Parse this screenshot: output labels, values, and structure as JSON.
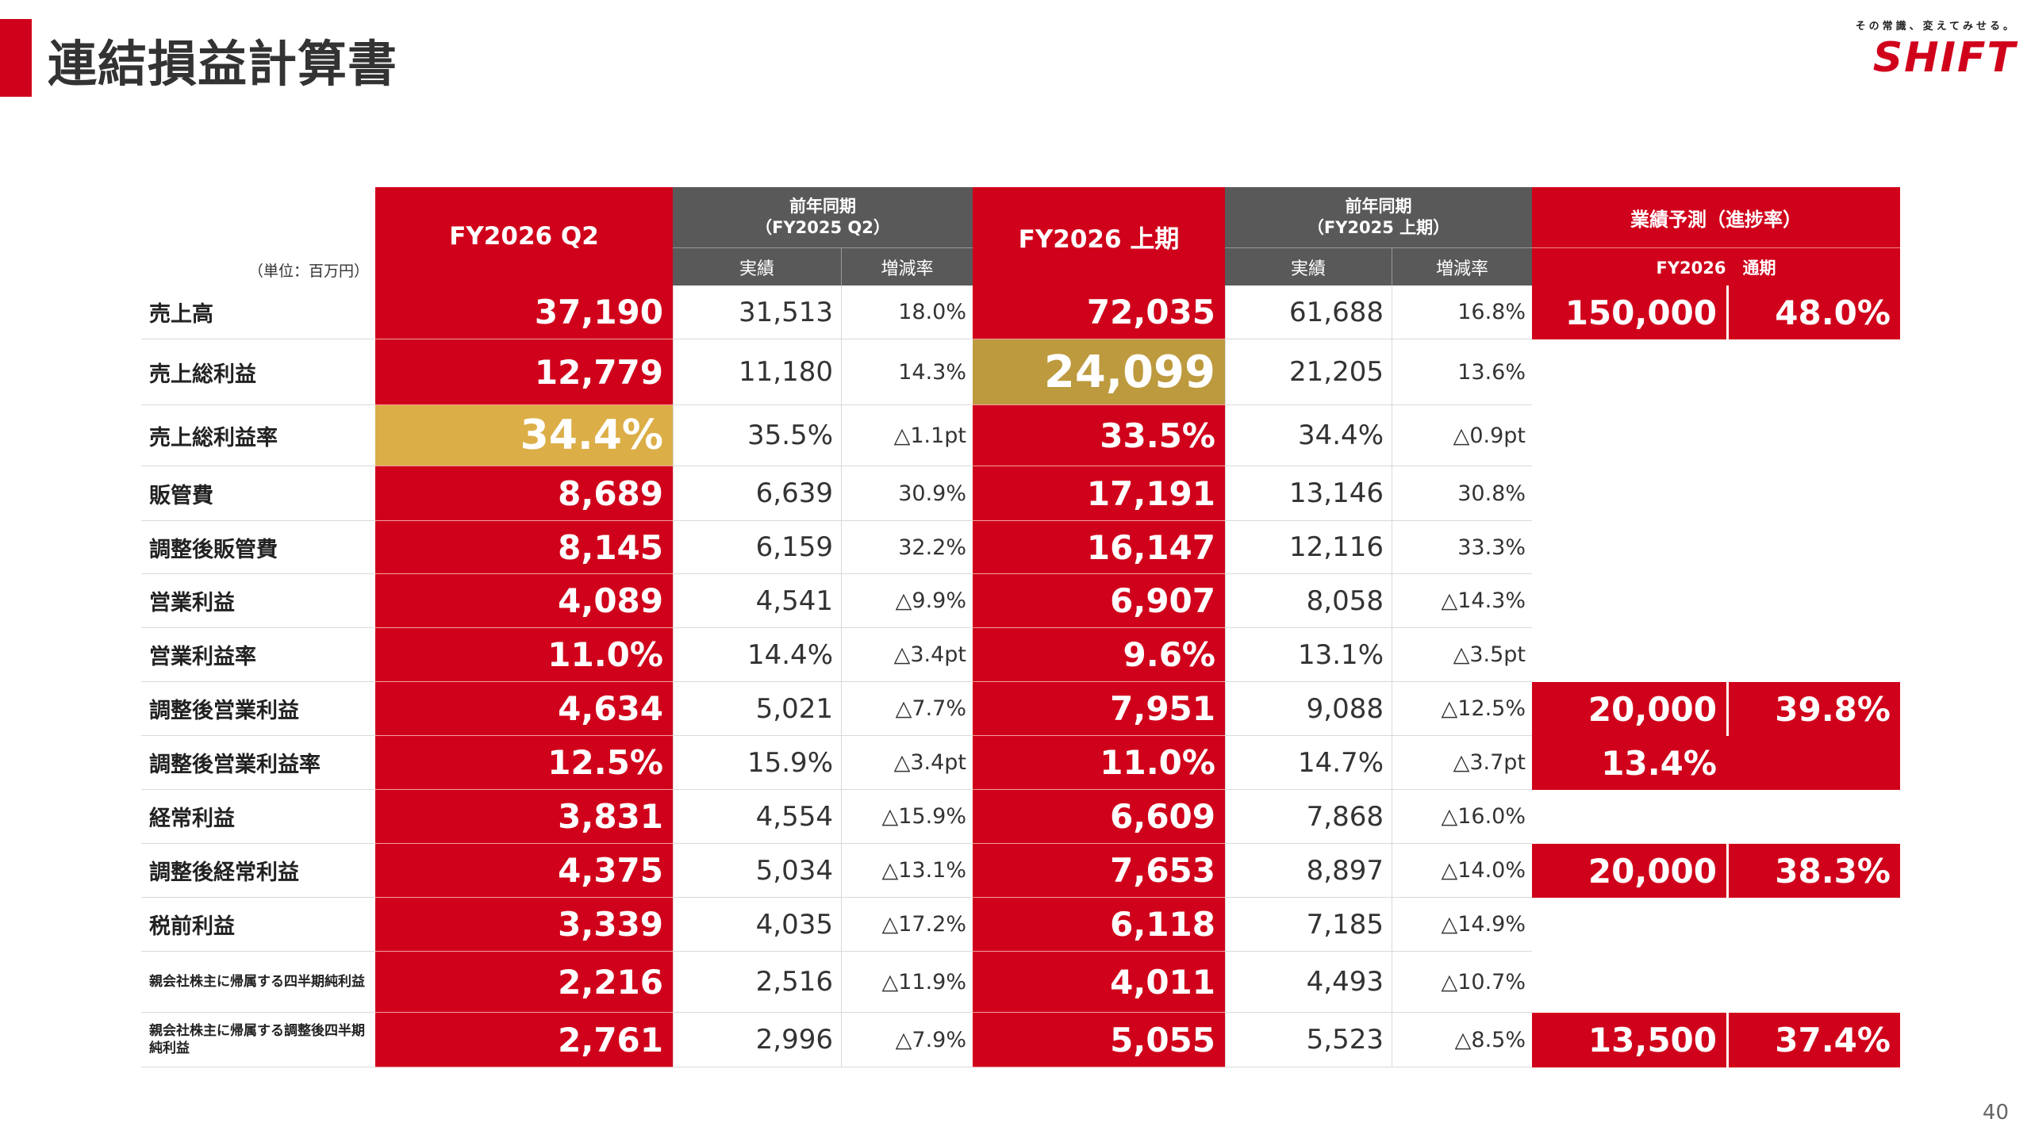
{
  "page": {
    "title": "連結損益計算書",
    "page_number": "40"
  },
  "logo": {
    "tagline": "その常識、変えてみせる。",
    "wordmark": "SHIFT"
  },
  "table": {
    "unit_label": "（単位：百万円）",
    "headers": {
      "fy2026_q2": "FY2026 Q2",
      "prev_q2_line1": "前年同期",
      "prev_q2_line2": "（FY2025 Q2）",
      "fy2026_h1": "FY2026 上期",
      "prev_h1_line1": "前年同期",
      "prev_h1_line2": "（FY2025 上期）",
      "forecast": "業績予測（進捗率）",
      "actual": "実績",
      "change": "増減率",
      "forecast_period": "FY2026　通期"
    },
    "rows": [
      {
        "label": "売上高",
        "q2": "37,190",
        "q2_prev": "31,513",
        "q2_chg": "18.0%",
        "h1": "72,035",
        "h1_prev": "61,688",
        "h1_chg": "16.8%",
        "fc": "150,000",
        "fc_pct": "48.0%"
      },
      {
        "label": "売上総利益",
        "q2": "12,779",
        "q2_prev": "11,180",
        "q2_chg": "14.3%",
        "h1": "24,099",
        "h1_prev": "21,205",
        "h1_chg": "13.6%",
        "fc": "",
        "fc_pct": ""
      },
      {
        "label": "売上総利益率",
        "q2": "34.4%",
        "q2_prev": "35.5%",
        "q2_chg": "△1.1pt",
        "h1": "33.5%",
        "h1_prev": "34.4%",
        "h1_chg": "△0.9pt",
        "fc": "",
        "fc_pct": ""
      },
      {
        "label": "販管費",
        "q2": "8,689",
        "q2_prev": "6,639",
        "q2_chg": "30.9%",
        "h1": "17,191",
        "h1_prev": "13,146",
        "h1_chg": "30.8%",
        "fc": "",
        "fc_pct": ""
      },
      {
        "label": "調整後販管費",
        "q2": "8,145",
        "q2_prev": "6,159",
        "q2_chg": "32.2%",
        "h1": "16,147",
        "h1_prev": "12,116",
        "h1_chg": "33.3%",
        "fc": "",
        "fc_pct": ""
      },
      {
        "label": "営業利益",
        "q2": "4,089",
        "q2_prev": "4,541",
        "q2_chg": "△9.9%",
        "h1": "6,907",
        "h1_prev": "8,058",
        "h1_chg": "△14.3%",
        "fc": "",
        "fc_pct": ""
      },
      {
        "label": "営業利益率",
        "q2": "11.0%",
        "q2_prev": "14.4%",
        "q2_chg": "△3.4pt",
        "h1": "9.6%",
        "h1_prev": "13.1%",
        "h1_chg": "△3.5pt",
        "fc": "",
        "fc_pct": ""
      },
      {
        "label": "調整後営業利益",
        "q2": "4,634",
        "q2_prev": "5,021",
        "q2_chg": "△7.7%",
        "h1": "7,951",
        "h1_prev": "9,088",
        "h1_chg": "△12.5%",
        "fc": "20,000",
        "fc_pct": "39.8%"
      },
      {
        "label": "調整後営業利益率",
        "q2": "12.5%",
        "q2_prev": "15.9%",
        "q2_chg": "△3.4pt",
        "h1": "11.0%",
        "h1_prev": "14.7%",
        "h1_chg": "△3.7pt",
        "fc": "13.4%",
        "fc_pct": ""
      },
      {
        "label": "経常利益",
        "q2": "3,831",
        "q2_prev": "4,554",
        "q2_chg": "△15.9%",
        "h1": "6,609",
        "h1_prev": "7,868",
        "h1_chg": "△16.0%",
        "fc": "",
        "fc_pct": ""
      },
      {
        "label": "調整後経常利益",
        "q2": "4,375",
        "q2_prev": "5,034",
        "q2_chg": "△13.1%",
        "h1": "7,653",
        "h1_prev": "8,897",
        "h1_chg": "△14.0%",
        "fc": "20,000",
        "fc_pct": "38.3%"
      },
      {
        "label": "税前利益",
        "q2": "3,339",
        "q2_prev": "4,035",
        "q2_chg": "△17.2%",
        "h1": "6,118",
        "h1_prev": "7,185",
        "h1_chg": "△14.9%",
        "fc": "",
        "fc_pct": ""
      },
      {
        "label": "親会社株主に帰属する四半期純利益",
        "q2": "2,216",
        "q2_prev": "2,516",
        "q2_chg": "△11.9%",
        "h1": "4,011",
        "h1_prev": "4,493",
        "h1_chg": "△10.7%",
        "fc": "",
        "fc_pct": ""
      },
      {
        "label": "親会社株主に帰属する調整後四半期純利益",
        "q2": "2,761",
        "q2_prev": "2,996",
        "q2_chg": "△7.9%",
        "h1": "5,055",
        "h1_prev": "5,523",
        "h1_chg": "△8.5%",
        "fc": "13,500",
        "fc_pct": "37.4%"
      }
    ],
    "highlights": {
      "q2_gold_row": 2,
      "h1_gold_row": 1,
      "label_small_rows": [
        12,
        13
      ]
    }
  }
}
